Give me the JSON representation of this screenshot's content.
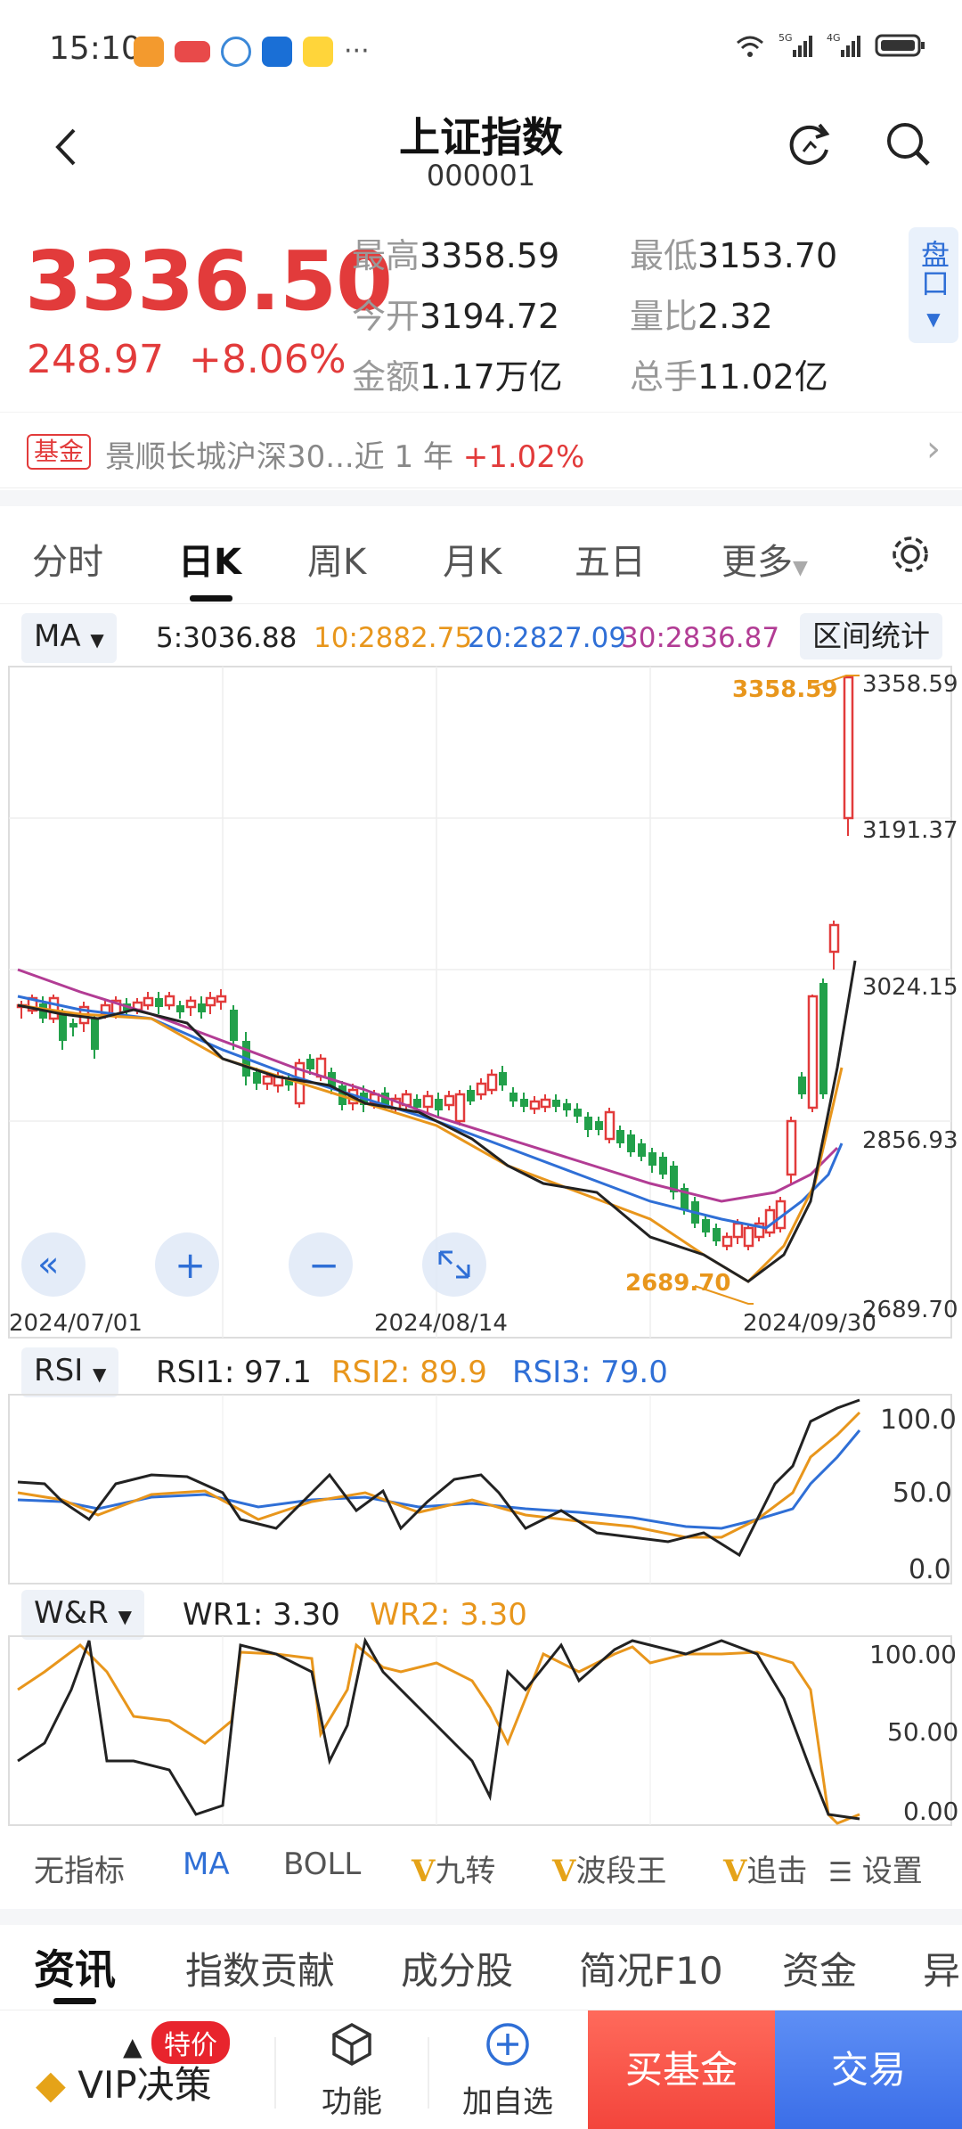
{
  "status": {
    "time": "15:10",
    "signal": "5G 4G"
  },
  "header": {
    "title": "上证指数",
    "code": "000001"
  },
  "quote": {
    "price": "3336.50",
    "change": "248.97",
    "change_pct": "+8.06%",
    "stats": [
      {
        "label": "最高",
        "value": "3358.59"
      },
      {
        "label": "最低",
        "value": "3153.70"
      },
      {
        "label": "今开",
        "value": "3194.72"
      },
      {
        "label": "量比",
        "value": "2.32"
      },
      {
        "label": "金额",
        "value": "1.17万亿"
      },
      {
        "label": "总手",
        "value": "11.02亿"
      }
    ],
    "pankou": "盘口"
  },
  "fund": {
    "badge": "基金",
    "name": "景顺长城沪深30...近 1 年",
    "pct": "+1.02%"
  },
  "ktabs": [
    "分时",
    "日K",
    "周K",
    "月K",
    "五日",
    "更多"
  ],
  "ma": {
    "selector": "MA",
    "ma5": "5:3036.88",
    "ma10": "10:2882.75",
    "ma20": "20:2827.09",
    "ma30": "30:2836.87",
    "range_btn": "区间统计",
    "colors": {
      "ma5": "#222222",
      "ma10": "#e8961c",
      "ma20": "#2f6fd6",
      "ma30": "#b23c94",
      "up": "#e23b3b",
      "down": "#22a04a"
    }
  },
  "kline": {
    "y_ticks": [
      "3358.59",
      "3191.37",
      "3024.15",
      "2856.93",
      "2689.70"
    ],
    "x_ticks": [
      "2024/07/01",
      "2024/08/14",
      "2024/09/30"
    ],
    "high_label": "3358.59",
    "low_label": "2689.70"
  },
  "rsi": {
    "selector": "RSI",
    "rsi1": "RSI1: 97.1",
    "rsi2": "RSI2: 89.9",
    "rsi3": "RSI3: 79.0",
    "ticks": [
      "100.0",
      "50.0",
      "0.0"
    ]
  },
  "wr": {
    "selector": "W&R",
    "wr1": "WR1: 3.30",
    "wr2": "WR2: 3.30",
    "ticks": [
      "100.00",
      "50.00",
      "0.00"
    ]
  },
  "indicators": [
    "无指标",
    "MA",
    "BOLL",
    "九转",
    "波段王",
    "追击",
    "设置"
  ],
  "news_tabs": [
    "资讯",
    "指数贡献",
    "成分股",
    "简况F10",
    "资金",
    "异"
  ],
  "bottom": {
    "vip": "VIP决策",
    "tejia": "特价",
    "func": "功能",
    "add": "加自选",
    "buy_fund": "买基金",
    "trade": "交易"
  },
  "chart_data": {
    "type": "candlestick",
    "price_ylim": [
      2689.7,
      3358.59
    ],
    "last_candles": [
      {
        "o": 3194.72,
        "h": 3358.59,
        "l": 3153.7,
        "c": 3336.5
      }
    ],
    "ma_last": {
      "ma5": 3036.88,
      "ma10": 2882.75,
      "ma20": 2827.09,
      "ma30": 2836.87
    }
  }
}
